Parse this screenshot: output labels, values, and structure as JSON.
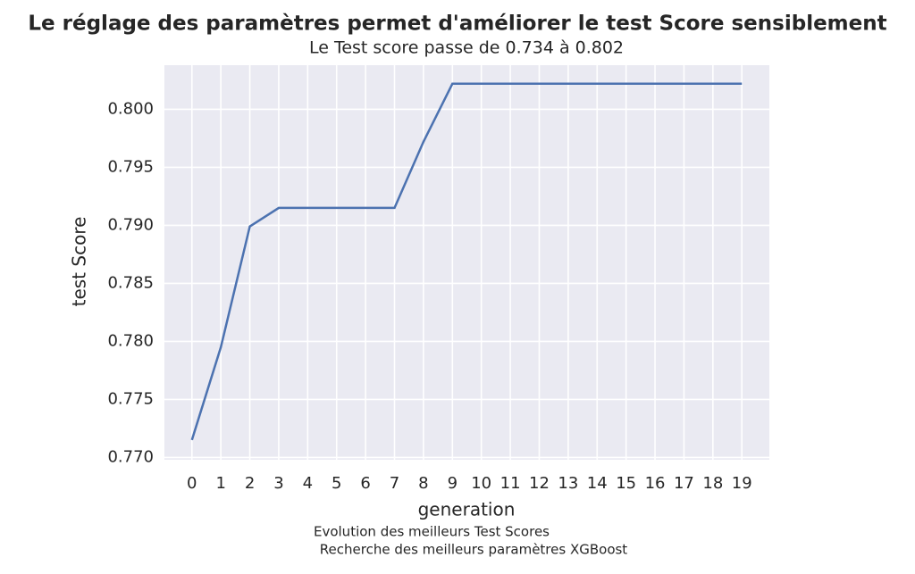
{
  "chart_data": {
    "type": "line",
    "title": "Le réglage des paramètres permet d'améliorer le  test Score sensiblement",
    "subtitle": "Le Test score passe de 0.734 à 0.802",
    "xlabel": "generation",
    "ylabel": "test  Score",
    "caption": [
      "Evolution des meilleurs Test Scores",
      "Recherche des meilleurs paramètres XGBoost"
    ],
    "x": [
      0,
      1,
      2,
      3,
      4,
      5,
      6,
      7,
      8,
      9,
      10,
      11,
      12,
      13,
      14,
      15,
      16,
      17,
      18,
      19
    ],
    "values": [
      0.7715,
      0.7795,
      0.7899,
      0.7915,
      0.7915,
      0.7915,
      0.7915,
      0.7915,
      0.7972,
      0.8022,
      0.8022,
      0.8022,
      0.8022,
      0.8022,
      0.8022,
      0.8022,
      0.8022,
      0.8022,
      0.8022,
      0.8022
    ],
    "color": "#4c72b0",
    "xlim": [
      -0.95,
      19.95
    ],
    "ylim": [
      0.7698,
      0.8038
    ],
    "xticks": [
      0,
      1,
      2,
      3,
      4,
      5,
      6,
      7,
      8,
      9,
      10,
      11,
      12,
      13,
      14,
      15,
      16,
      17,
      18,
      19
    ],
    "yticks": [
      {
        "value": 0.77,
        "label": "0.770"
      },
      0.775,
      {
        "value": 0.78,
        "label": "0.780"
      },
      0.785,
      {
        "value": 0.79,
        "label": "0.790"
      },
      0.795,
      {
        "value": 0.8,
        "label": "0.800"
      }
    ],
    "grid": true
  }
}
